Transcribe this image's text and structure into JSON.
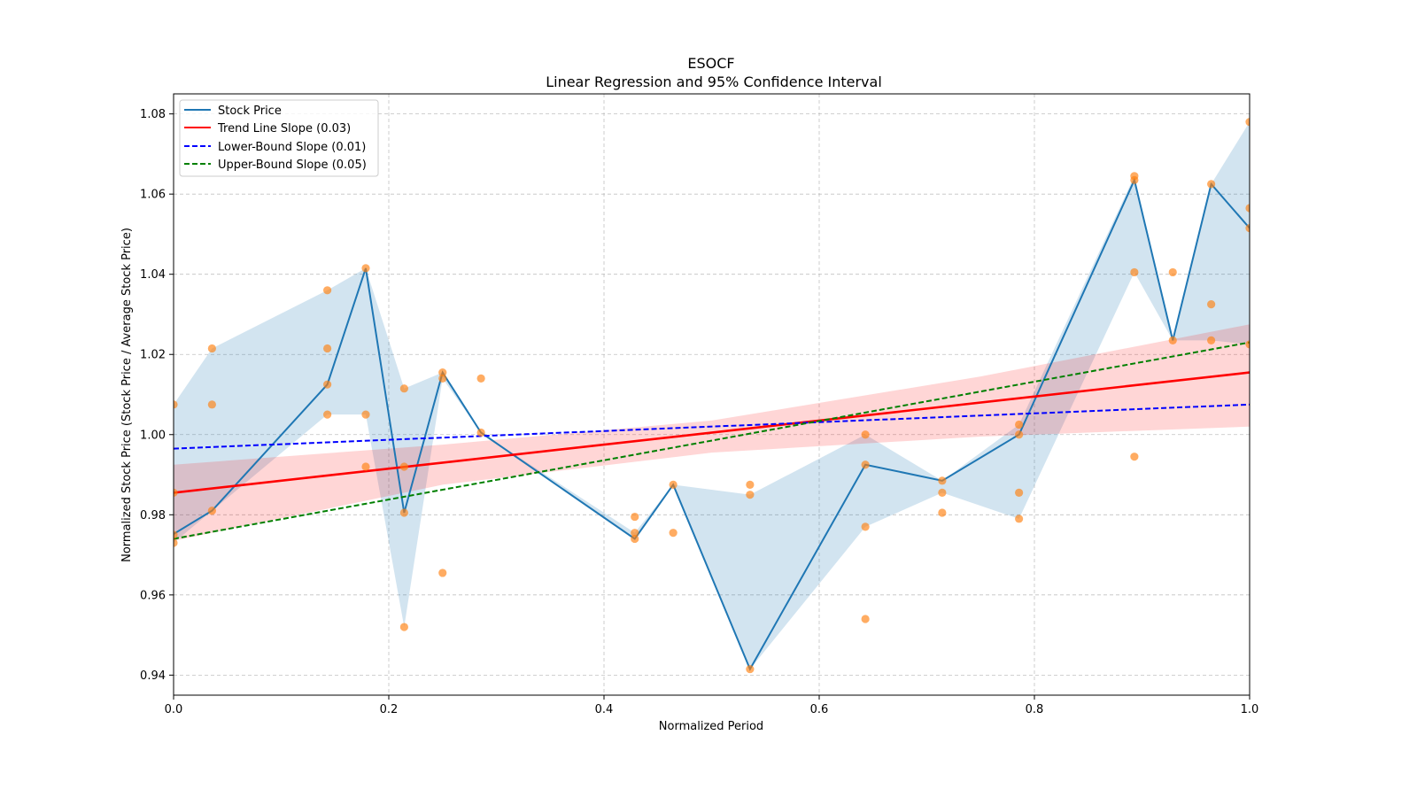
{
  "chart_data": {
    "type": "line",
    "title": "ESOCF",
    "subtitle": "Linear Regression and 95% Confidence Interval",
    "xlabel": "Normalized Period",
    "ylabel": "Normalized Stock Price (Stock Price / Average Stock Price)",
    "xlim": [
      0.0,
      1.0
    ],
    "ylim": [
      0.935,
      1.085
    ],
    "xticks": [
      "0.0",
      "0.2",
      "0.4",
      "0.6",
      "0.8",
      "1.0"
    ],
    "xtick_values": [
      0.0,
      0.2,
      0.4,
      0.6,
      0.8,
      1.0
    ],
    "yticks": [
      "0.94",
      "0.96",
      "0.98",
      "1.00",
      "1.02",
      "1.04",
      "1.06",
      "1.08"
    ],
    "ytick_values": [
      0.94,
      0.96,
      0.98,
      1.0,
      1.02,
      1.04,
      1.06,
      1.08
    ],
    "grid": true,
    "legend_position": "top-left",
    "legend": [
      {
        "label": "Stock Price",
        "style": "solid",
        "color": "#1f77b4"
      },
      {
        "label": "Trend Line Slope (0.03)",
        "style": "solid",
        "color": "#ff0000"
      },
      {
        "label": "Lower-Bound Slope (0.01)",
        "style": "dashed",
        "color": "#0000ff"
      },
      {
        "label": "Upper-Bound Slope (0.05)",
        "style": "dashed",
        "color": "#008000"
      }
    ],
    "colors": {
      "stock_line": "#1f77b4",
      "stock_band": "#1f77b4",
      "scatter": "#ff7f0e",
      "trend": "#ff0000",
      "trend_band": "#ff9999",
      "lower": "#0000ff",
      "upper": "#008000",
      "grid": "#b0b0b0"
    },
    "stock_price": {
      "x": [
        0.0,
        0.0357,
        0.1429,
        0.1786,
        0.2143,
        0.25,
        0.2857,
        0.4286,
        0.4643,
        0.5357,
        0.6429,
        0.7143,
        0.7857,
        0.8929,
        0.9286,
        0.9643,
        1.0
      ],
      "y": [
        0.9752,
        0.981,
        1.0125,
        1.0415,
        0.9805,
        1.0155,
        1.0005,
        0.974,
        0.9875,
        0.9415,
        0.9925,
        0.9885,
        1.0,
        1.0635,
        1.0235,
        1.0625,
        1.0515
      ],
      "band_upper": [
        1.0075,
        1.0215,
        1.036,
        1.0415,
        1.0115,
        1.0155,
        1.0005,
        0.9755,
        0.9875,
        0.985,
        1.0,
        0.9885,
        1.0025,
        1.0645,
        1.0235,
        1.0625,
        1.078
      ],
      "band_lower": [
        0.973,
        0.981,
        1.005,
        1.005,
        0.952,
        1.014,
        1.0005,
        0.974,
        0.9875,
        0.9415,
        0.977,
        0.9855,
        0.979,
        1.0405,
        1.0235,
        1.0235,
        1.0225
      ]
    },
    "scatter": {
      "x": [
        0.0,
        0.0,
        0.0,
        0.0,
        0.0357,
        0.0357,
        0.0357,
        0.1429,
        0.1429,
        0.1429,
        0.1429,
        0.1786,
        0.1786,
        0.1786,
        0.2143,
        0.2143,
        0.2143,
        0.2143,
        0.25,
        0.25,
        0.25,
        0.2857,
        0.2857,
        0.4286,
        0.4286,
        0.4286,
        0.4643,
        0.4643,
        0.5357,
        0.5357,
        0.5357,
        0.6429,
        0.6429,
        0.6429,
        0.6429,
        0.7143,
        0.7143,
        0.7143,
        0.7857,
        0.7857,
        0.7857,
        0.7857,
        0.8929,
        0.8929,
        0.8929,
        0.8929,
        0.9286,
        0.9286,
        0.9643,
        0.9643,
        0.9643,
        1.0,
        1.0,
        1.0,
        1.0
      ],
      "y": [
        1.0075,
        0.9855,
        0.975,
        0.973,
        1.0215,
        1.0075,
        0.981,
        1.036,
        1.0215,
        1.0125,
        1.005,
        1.0415,
        1.005,
        0.992,
        1.0115,
        0.992,
        0.9805,
        0.952,
        1.0155,
        1.014,
        0.9655,
        1.014,
        1.0005,
        0.9795,
        0.9755,
        0.974,
        0.9875,
        0.9755,
        0.9875,
        0.985,
        0.9415,
        1.0,
        0.9925,
        0.977,
        0.954,
        0.9885,
        0.9855,
        0.9805,
        1.0025,
        1.0,
        0.9855,
        0.979,
        1.0645,
        1.0635,
        1.0405,
        0.9945,
        1.0405,
        1.0235,
        1.0625,
        1.0325,
        1.0235,
        1.078,
        1.0565,
        1.0515,
        1.0225
      ]
    },
    "trend_line": {
      "x": [
        0.0,
        1.0
      ],
      "y": [
        0.9855,
        1.0155
      ]
    },
    "trend_band": {
      "x": [
        0.0,
        0.25,
        0.5,
        0.75,
        1.0
      ],
      "upper": [
        0.9925,
        0.9975,
        1.0035,
        1.0145,
        1.0275
      ],
      "lower": [
        0.9735,
        0.9875,
        0.9955,
        0.9995,
        1.002
      ]
    },
    "lower_bound_line": {
      "x": [
        0.0,
        1.0
      ],
      "y": [
        0.9965,
        1.0075
      ]
    },
    "upper_bound_line": {
      "x": [
        0.0,
        1.0
      ],
      "y": [
        0.974,
        1.023
      ]
    }
  }
}
